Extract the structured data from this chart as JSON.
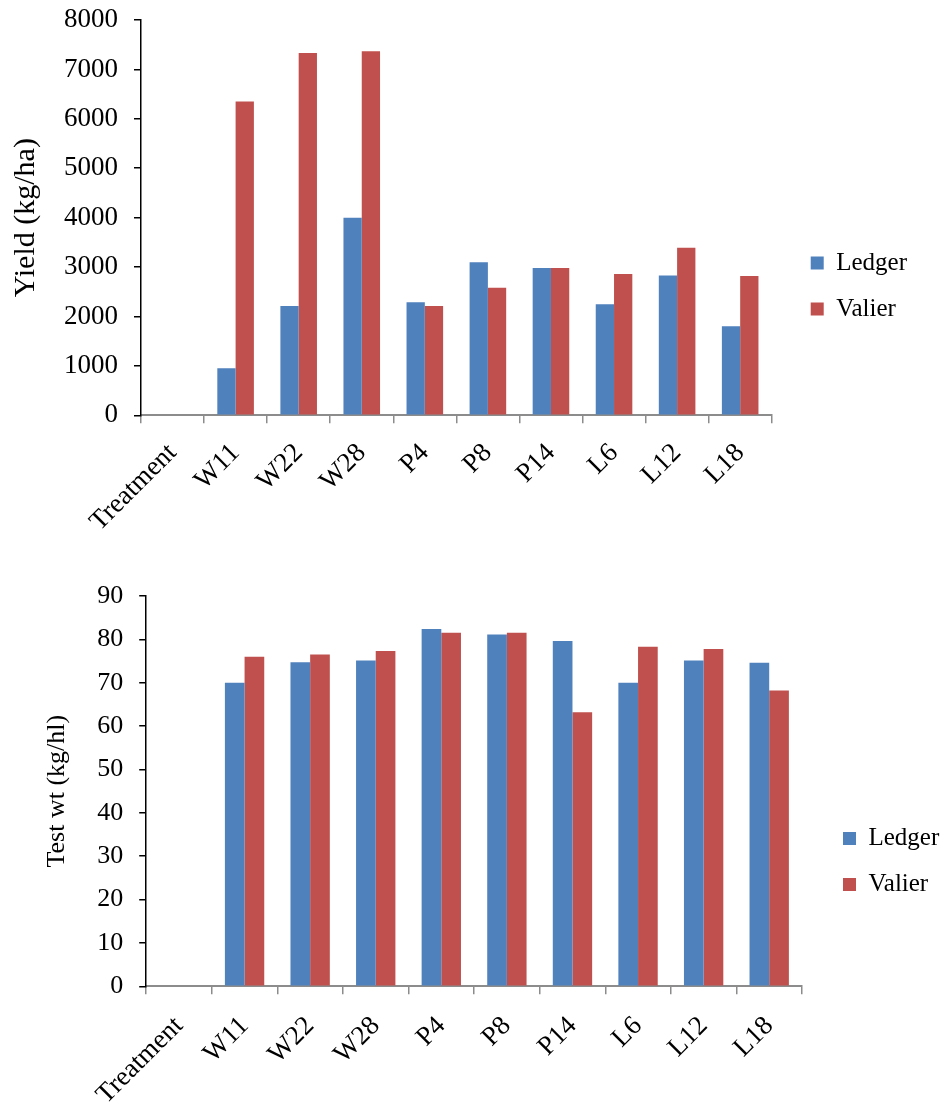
{
  "chart_data": [
    {
      "type": "bar",
      "ylabel": "Yield (kg/ha)",
      "categories": [
        "Treatment",
        "W11",
        "W22",
        "W28",
        "P4",
        "P8",
        "P14",
        "L6",
        "L12",
        "L18"
      ],
      "series": [
        {
          "name": "Ledger",
          "color": "#4f81bd",
          "values": [
            null,
            950,
            2210,
            4000,
            2290,
            3100,
            2980,
            2250,
            2830,
            1800
          ]
        },
        {
          "name": "Valier",
          "color": "#c0504d",
          "values": [
            null,
            6350,
            7330,
            7370,
            2210,
            2580,
            2980,
            2860,
            3390,
            2820
          ]
        }
      ],
      "ylim": [
        0,
        8000
      ],
      "yticks": [
        0,
        1000,
        2000,
        3000,
        4000,
        5000,
        6000,
        7000,
        8000
      ],
      "legend": "right"
    },
    {
      "type": "bar",
      "ylabel": "Test wt (kg/hl)",
      "categories": [
        "Treatment",
        "W11",
        "W22",
        "W28",
        "P4",
        "P8",
        "P14",
        "L6",
        "L12",
        "L18"
      ],
      "series": [
        {
          "name": "Ledger",
          "color": "#4f81bd",
          "values": [
            null,
            70.0,
            74.7,
            75.1,
            82.4,
            81.1,
            79.6,
            70.0,
            75.1,
            74.6
          ]
        },
        {
          "name": "Valier",
          "color": "#c0504d",
          "values": [
            null,
            76.0,
            76.5,
            77.3,
            81.5,
            81.5,
            63.2,
            78.3,
            77.8,
            68.2
          ]
        }
      ],
      "ylim": [
        0,
        90
      ],
      "yticks": [
        0,
        10,
        20,
        30,
        40,
        50,
        60,
        70,
        80,
        90
      ],
      "legend": "right"
    }
  ]
}
